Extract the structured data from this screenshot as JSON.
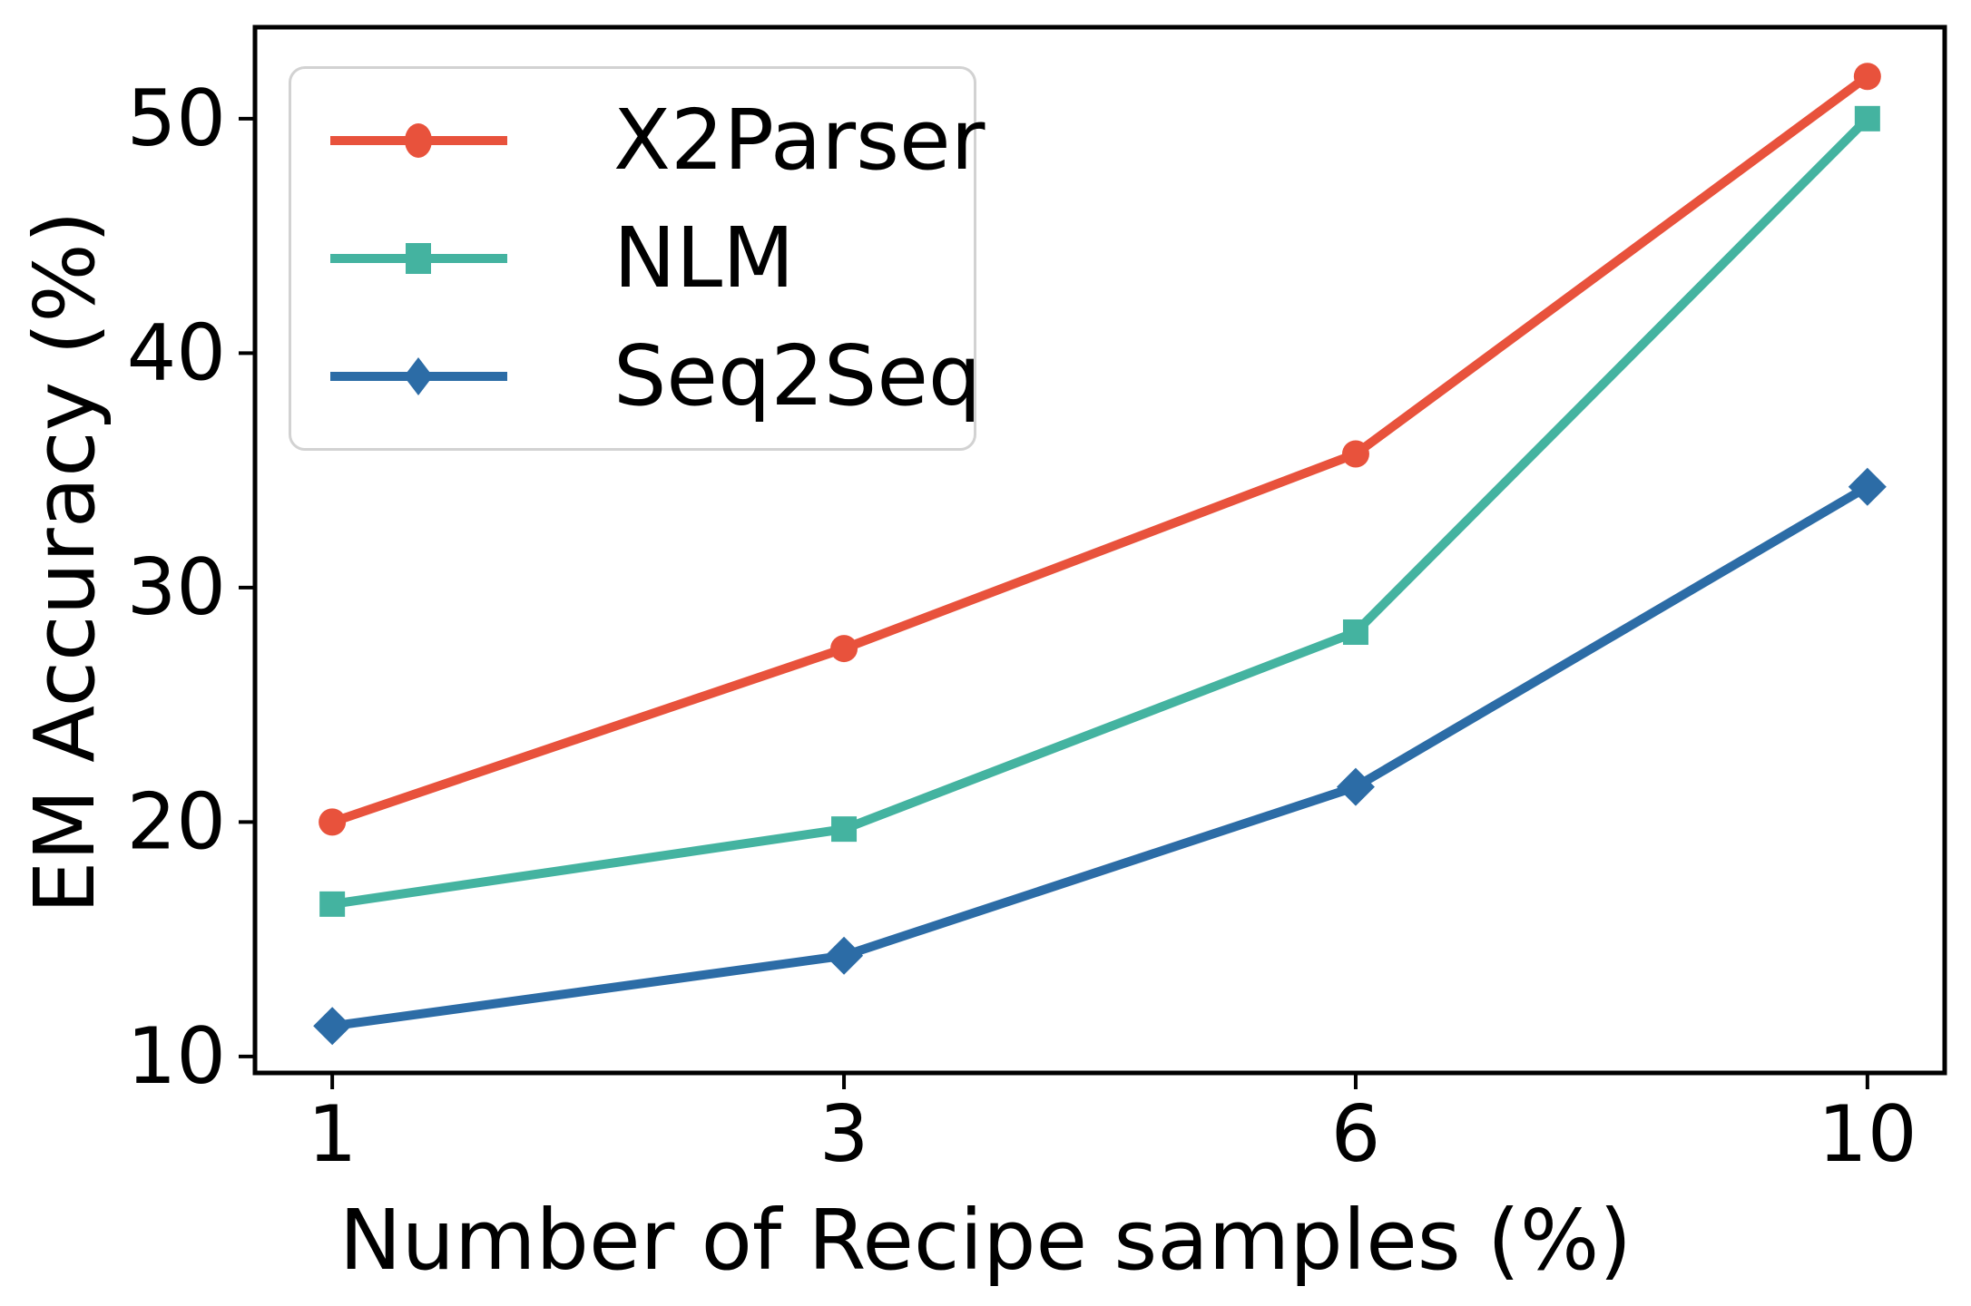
{
  "chart_data": {
    "type": "line",
    "title": "",
    "xlabel": "Number of Recipe samples (%)",
    "ylabel": "EM Accuracy (%)",
    "categories": [
      "1",
      "3",
      "6",
      "10"
    ],
    "y_ticks": [
      10,
      20,
      30,
      40,
      50
    ],
    "ylim": [
      9.3,
      53.9
    ],
    "xlim_category_units": [
      -0.151,
      3.151
    ],
    "grid": false,
    "legend_position": "upper left",
    "series": [
      {
        "name": "X2Parser",
        "color": "#E8523C",
        "marker": "circle",
        "values": [
          20.0,
          27.4,
          35.7,
          51.8
        ]
      },
      {
        "name": "NLM",
        "color": "#44B3A0",
        "marker": "square",
        "values": [
          16.5,
          19.7,
          28.1,
          50.0
        ]
      },
      {
        "name": "Seq2Seq",
        "color": "#2C6CA6",
        "marker": "diamond",
        "values": [
          11.3,
          14.3,
          21.5,
          34.3
        ]
      }
    ]
  }
}
